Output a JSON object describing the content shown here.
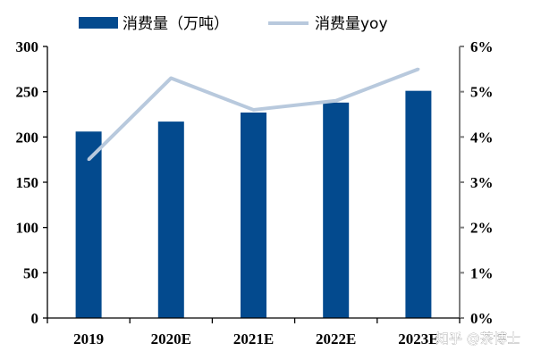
{
  "chart_data": {
    "type": "bar",
    "categories": [
      "2019",
      "2020E",
      "2021E",
      "2022E",
      "2023E"
    ],
    "series": [
      {
        "name": "消费量（万吨）",
        "type": "bar",
        "axis": "left",
        "color": "#034a8e",
        "values": [
          206,
          217,
          227,
          238,
          251
        ]
      },
      {
        "name": "消费量yoy",
        "type": "line",
        "axis": "right",
        "color": "#b8c9dd",
        "values": [
          3.5,
          5.3,
          4.6,
          4.8,
          5.5
        ]
      }
    ],
    "ylim_left": [
      0,
      300
    ],
    "yticks_left": [
      "0",
      "50",
      "100",
      "150",
      "200",
      "250",
      "300"
    ],
    "ylim_right": [
      0,
      6
    ],
    "yticks_right": [
      "0%",
      "1%",
      "2%",
      "3%",
      "4%",
      "5%",
      "6%"
    ],
    "legend_position": "top",
    "grid": false
  },
  "watermark": "知乎 @茶博士"
}
